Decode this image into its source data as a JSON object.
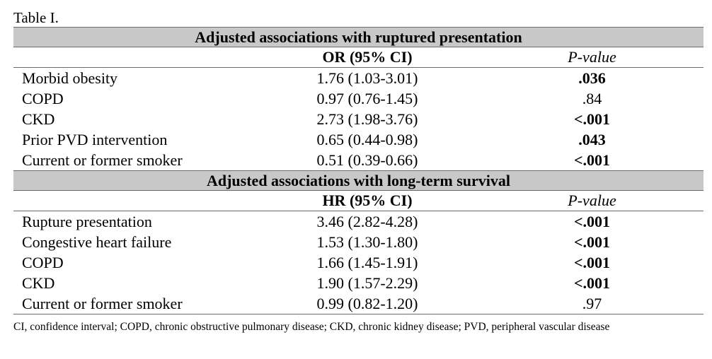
{
  "caption": "Table I.",
  "section1": {
    "title": "Adjusted associations with ruptured presentation",
    "col2": "OR (95% CI)",
    "col3": "P-value",
    "rows": [
      {
        "label": "Morbid obesity",
        "est": "1.76 (1.03-3.01)",
        "p": ".036"
      },
      {
        "label": "COPD",
        "est": "0.97 (0.76-1.45)",
        "p": ".84"
      },
      {
        "label": "CKD",
        "est": "2.73 (1.98-3.76)",
        "p": "<.001"
      },
      {
        "label": "Prior PVD intervention",
        "est": "0.65 (0.44-0.98)",
        "p": ".043"
      },
      {
        "label": "Current or former smoker",
        "est": "0.51 (0.39-0.66)",
        "p": "<.001"
      }
    ]
  },
  "section2": {
    "title": "Adjusted associations with long-term survival",
    "col2": "HR (95% CI)",
    "col3": "P-value",
    "rows": [
      {
        "label": "Rupture presentation",
        "est": "3.46 (2.82-4.28)",
        "p": "<.001"
      },
      {
        "label": "Congestive heart failure",
        "est": "1.53 (1.30-1.80)",
        "p": "<.001"
      },
      {
        "label": "COPD",
        "est": "1.66 (1.45-1.91)",
        "p": "<.001"
      },
      {
        "label": "CKD",
        "est": "1.90 (1.57-2.29)",
        "p": "<.001"
      },
      {
        "label": "Current or former smoker",
        "est": "0.99 (0.82-1.20)",
        "p": ".97"
      }
    ]
  },
  "footnote": "CI, confidence interval; COPD, chronic obstructive pulmonary disease; CKD, chronic kidney disease; PVD, peripheral vascular disease"
}
